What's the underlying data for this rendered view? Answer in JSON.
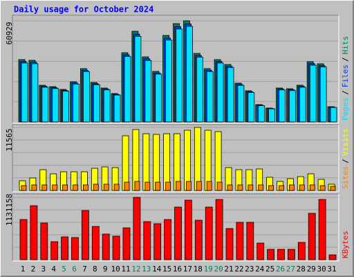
{
  "title": "Daily usage for October 2024",
  "days": [
    "1",
    "2",
    "3",
    "4",
    "5",
    "6",
    "7",
    "8",
    "9",
    "10",
    "11",
    "12",
    "13",
    "14",
    "15",
    "16",
    "17",
    "18",
    "19",
    "20",
    "21",
    "22",
    "23",
    "24",
    "25",
    "26",
    "27",
    "28",
    "29",
    "30",
    "31"
  ],
  "day_colors": [
    "#000000",
    "#000000",
    "#000000",
    "#000000",
    "#00805c",
    "#00805c",
    "#000000",
    "#000000",
    "#000000",
    "#000000",
    "#000000",
    "#00805c",
    "#00805c",
    "#000000",
    "#000000",
    "#000000",
    "#000000",
    "#000000",
    "#00805c",
    "#00805c",
    "#000000",
    "#000000",
    "#000000",
    "#000000",
    "#000000",
    "#00805c",
    "#00805c",
    "#000000",
    "#000000",
    "#000000",
    "#000000"
  ],
  "legend_separator": "/",
  "chart_data": [
    {
      "type": "bar",
      "ylim": [
        0,
        60929
      ],
      "yticks": [
        60929
      ],
      "series": [
        {
          "name": "Hits",
          "color": "#00805c",
          "values": [
            37530,
            37113,
            22101,
            21267,
            19599,
            24186,
            32109,
            23769,
            20433,
            17097,
            41700,
            54627,
            39198,
            30441,
            52125,
            59214,
            60929,
            41283,
            32109,
            37530,
            34611,
            23352,
            18765,
            10425,
            8340,
            20433,
            20016,
            22101,
            36279,
            35028,
            9174
          ]
        },
        {
          "name": "Files",
          "color": "#0040ff",
          "values": [
            36400,
            36000,
            21400,
            20600,
            19000,
            23400,
            31100,
            23000,
            19800,
            16600,
            40400,
            52900,
            38000,
            29500,
            50500,
            57400,
            59000,
            40000,
            31100,
            36400,
            33500,
            22600,
            18200,
            10100,
            8100,
            19800,
            19400,
            21400,
            35100,
            33900,
            8900
          ]
        },
        {
          "name": "Pages",
          "color": "#00e0ff",
          "values": [
            35500,
            35100,
            20900,
            20100,
            18500,
            22800,
            30300,
            22400,
            19300,
            16200,
            39400,
            51600,
            37000,
            28800,
            49300,
            56000,
            57600,
            39000,
            30300,
            35500,
            32700,
            22000,
            17700,
            9800,
            7900,
            19300,
            18900,
            20900,
            34200,
            33100,
            8700
          ]
        }
      ]
    },
    {
      "type": "bar",
      "ylim": [
        0,
        11565
      ],
      "yticks": [
        11565
      ],
      "series": [
        {
          "name": "Visits",
          "color": "#ffff00",
          "values": [
            1778,
            2286,
            3810,
            3048,
            3429,
            3429,
            3429,
            4064,
            4318,
            4191,
            10033,
            11176,
            10414,
            10287,
            10414,
            10414,
            11049,
            11565,
            11049,
            10795,
            4191,
            3810,
            3810,
            3937,
            2413,
            1651,
            2159,
            2540,
            3048,
            2032,
            1143
          ]
        },
        {
          "name": "Sites",
          "color": "#ff8000",
          "values": [
            889,
            1016,
            1016,
            1016,
            1016,
            1016,
            1016,
            1143,
            1143,
            1143,
            1524,
            1651,
            1524,
            1524,
            1524,
            1651,
            1651,
            1651,
            1651,
            1524,
            1016,
            1016,
            1016,
            1016,
            889,
            889,
            1016,
            1016,
            1016,
            889,
            762
          ]
        }
      ]
    },
    {
      "type": "bar",
      "ylim": [
        0,
        1131158
      ],
      "yticks": [
        1131158
      ],
      "series": [
        {
          "name": "KBytes",
          "color": "#ff0000",
          "values": [
            728967,
            980335,
            666126,
            326779,
            414757,
            402189,
            892357,
            603283,
            465032,
            427327,
            578148,
            1131158,
            691263,
            653558,
            728967,
            955200,
            1080882,
            716398,
            955200,
            1093452,
            565580,
            678695,
            678695,
            301644,
            188527,
            188527,
            188527,
            314211,
            842085,
            1093452,
            87980
          ]
        }
      ]
    }
  ]
}
